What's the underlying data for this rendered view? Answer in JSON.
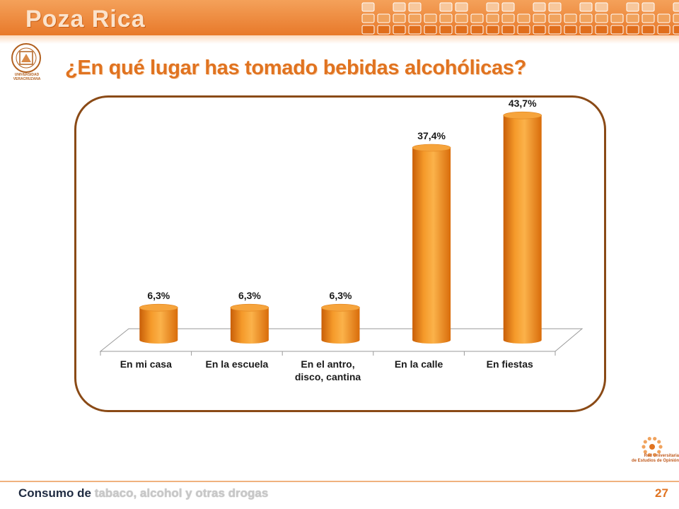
{
  "header": {
    "title": "Poza Rica"
  },
  "logo": {
    "caption": "UNIVERSIDAD VERACRUZANA"
  },
  "question": "¿En qué lugar has tomado bebidas alcohólicas?",
  "chart_data": {
    "type": "bar",
    "categories": [
      "En mi casa",
      "En la escuela",
      "En el antro, disco, cantina",
      "En la calle",
      "En fiestas"
    ],
    "category_lines": [
      [
        "En mi casa"
      ],
      [
        "En la escuela"
      ],
      [
        "En el antro,",
        "disco, cantina"
      ],
      [
        "En la calle"
      ],
      [
        "En fiestas"
      ]
    ],
    "values": [
      6.3,
      6.3,
      6.3,
      37.4,
      43.7
    ],
    "data_labels": [
      "6,3%",
      "6,3%",
      "6,3%",
      "37,4%",
      "43,7%"
    ],
    "title": "",
    "xlabel": "",
    "ylabel": "",
    "ylim": [
      0,
      50
    ],
    "grid": false,
    "legend": "none",
    "bar_color": "#f08c1c"
  },
  "rueo": {
    "line1": "Red Universitaria",
    "line2": "de Estudios de Opinión"
  },
  "footer": {
    "prefix": "Consumo de",
    "topic": "tabaco, alcohol y otras drogas",
    "page": "27"
  },
  "colors": {
    "accent": "#e07320",
    "frame": "#8a4a16",
    "bar": "#f08c1c"
  }
}
